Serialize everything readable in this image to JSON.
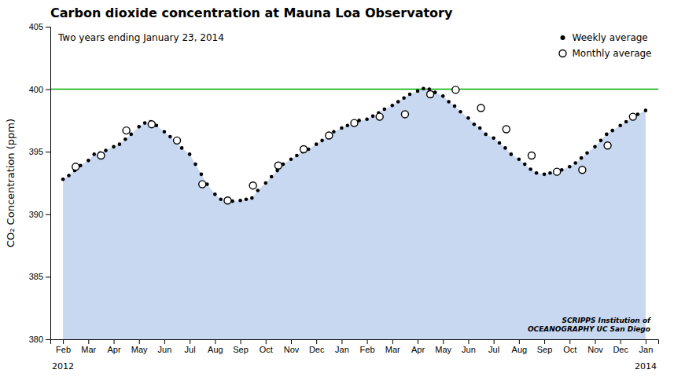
{
  "chart_data": {
    "type": "scatter",
    "title": "Carbon dioxide concentration at Mauna Loa Observatory",
    "subtitle": "Two years ending January 23, 2014",
    "y_label": "CO₂ Concentration (ppm)",
    "xlim": [
      -0.5,
      23.5
    ],
    "xticks": [
      {
        "value": 0,
        "label": "Feb"
      },
      {
        "value": 1,
        "label": "Mar"
      },
      {
        "value": 2,
        "label": "Apr"
      },
      {
        "value": 3,
        "label": "May"
      },
      {
        "value": 4,
        "label": "Jun"
      },
      {
        "value": 5,
        "label": "Jul"
      },
      {
        "value": 6,
        "label": "Aug"
      },
      {
        "value": 7,
        "label": "Sep"
      },
      {
        "value": 8,
        "label": "Oct"
      },
      {
        "value": 9,
        "label": "Nov"
      },
      {
        "value": 10,
        "label": "Dec"
      },
      {
        "value": 11,
        "label": "Jan"
      },
      {
        "value": 12,
        "label": "Feb"
      },
      {
        "value": 13,
        "label": "Mar"
      },
      {
        "value": 14,
        "label": "Apr"
      },
      {
        "value": 15,
        "label": "May"
      },
      {
        "value": 16,
        "label": "Jun"
      },
      {
        "value": 17,
        "label": "Jul"
      },
      {
        "value": 18,
        "label": "Aug"
      },
      {
        "value": 19,
        "label": "Sep"
      },
      {
        "value": 20,
        "label": "Oct"
      },
      {
        "value": 21,
        "label": "Nov"
      },
      {
        "value": 22,
        "label": "Dec"
      },
      {
        "value": 23,
        "label": "Jan"
      }
    ],
    "ylim": [
      380,
      405
    ],
    "yticks": [
      380,
      385,
      390,
      395,
      400,
      405
    ],
    "grid": false,
    "legend": "upper right",
    "annotations": [
      {
        "text": "2012",
        "x": 0
      },
      {
        "text": "2014",
        "x": 23
      },
      {
        "text": "SCRIPPS Institution of\nOCEANOGRAPHY UC San Diego"
      }
    ],
    "series": [
      {
        "type": "area",
        "color": "#c8d8f0",
        "x": [
          0.0,
          0.23,
          0.46,
          0.69,
          1.0,
          1.23,
          1.46,
          1.69,
          2.0,
          2.23,
          2.46,
          2.69,
          3.0,
          3.23,
          3.46,
          3.69,
          4.0,
          4.23,
          4.46,
          4.69,
          5.0,
          5.23,
          5.46,
          5.69,
          6.0,
          6.23,
          6.46,
          6.69,
          7.0,
          7.23,
          7.46,
          7.69,
          8.0,
          8.23,
          8.46,
          8.69,
          9.0,
          9.23,
          9.46,
          9.69,
          10.0,
          10.23,
          10.46,
          10.69,
          11.0,
          11.23,
          11.46,
          11.69,
          12.0,
          12.23,
          12.46,
          12.69,
          13.0,
          13.23,
          13.46,
          13.69,
          14.0,
          14.23,
          14.46,
          14.69,
          15.0,
          15.23,
          15.46,
          15.69,
          16.0,
          16.23,
          16.46,
          16.69,
          17.0,
          17.23,
          17.46,
          17.69,
          18.0,
          18.23,
          18.46,
          18.69,
          19.0,
          19.23,
          19.46,
          19.69,
          20.0,
          20.23,
          20.46,
          20.69,
          21.0,
          21.23,
          21.46,
          21.69,
          22.0,
          22.23,
          22.46,
          22.69,
          23.0
        ],
        "values": [
          392.8,
          393.1,
          393.5,
          393.9,
          394.3,
          394.8,
          394.9,
          395.1,
          395.4,
          395.6,
          396.0,
          396.4,
          397.0,
          397.3,
          397.4,
          397.1,
          396.6,
          396.2,
          395.8,
          395.3,
          394.8,
          394.0,
          393.2,
          392.4,
          391.6,
          391.2,
          391.0,
          391.05,
          391.1,
          391.2,
          391.3,
          391.9,
          392.5,
          393.0,
          393.5,
          394.0,
          394.4,
          394.7,
          395.0,
          395.2,
          395.6,
          395.9,
          396.2,
          396.6,
          396.9,
          397.1,
          397.2,
          397.5,
          397.6,
          397.85,
          398.1,
          398.4,
          398.7,
          399.0,
          399.3,
          399.6,
          399.85,
          400.05,
          400.0,
          399.75,
          399.45,
          399.0,
          398.65,
          398.2,
          397.7,
          397.2,
          396.9,
          396.4,
          396.1,
          395.7,
          395.3,
          394.8,
          394.4,
          394.0,
          393.6,
          393.3,
          393.2,
          393.3,
          393.4,
          393.55,
          393.8,
          394.1,
          394.5,
          394.9,
          395.4,
          395.9,
          396.4,
          396.7,
          397.1,
          397.4,
          397.7,
          398.0,
          398.3
        ]
      },
      {
        "type": "hline",
        "color": "#00aa00",
        "values": [
          400
        ]
      },
      {
        "name": "Weekly average",
        "type": "scatter",
        "marker": "circle",
        "color": "#000000",
        "x": [
          0.0,
          0.23,
          0.46,
          0.69,
          1.0,
          1.23,
          1.46,
          1.69,
          2.0,
          2.23,
          2.46,
          2.69,
          3.0,
          3.23,
          3.46,
          3.69,
          4.0,
          4.23,
          4.46,
          4.69,
          5.0,
          5.23,
          5.46,
          5.69,
          6.0,
          6.23,
          6.46,
          6.69,
          7.0,
          7.23,
          7.46,
          7.69,
          8.0,
          8.23,
          8.46,
          8.69,
          9.0,
          9.23,
          9.46,
          9.69,
          10.0,
          10.23,
          10.46,
          10.69,
          11.0,
          11.23,
          11.46,
          11.69,
          12.0,
          12.23,
          12.46,
          12.69,
          13.0,
          13.23,
          13.46,
          13.69,
          14.0,
          14.23,
          14.46,
          14.69,
          15.0,
          15.23,
          15.46,
          15.69,
          16.0,
          16.23,
          16.46,
          16.69,
          17.0,
          17.23,
          17.46,
          17.69,
          18.0,
          18.23,
          18.46,
          18.69,
          19.0,
          19.23,
          19.46,
          19.69,
          20.0,
          20.23,
          20.46,
          20.69,
          21.0,
          21.23,
          21.46,
          21.69,
          22.0,
          22.23,
          22.46,
          22.69,
          23.0
        ],
        "values": [
          392.8,
          393.1,
          393.5,
          393.9,
          394.3,
          394.8,
          394.9,
          395.1,
          395.4,
          395.6,
          396.0,
          396.4,
          397.0,
          397.3,
          397.4,
          397.1,
          396.6,
          396.2,
          395.8,
          395.3,
          394.8,
          394.0,
          393.2,
          392.4,
          391.6,
          391.2,
          391.0,
          391.05,
          391.1,
          391.2,
          391.3,
          391.9,
          392.5,
          393.0,
          393.5,
          394.0,
          394.4,
          394.7,
          395.0,
          395.2,
          395.6,
          395.9,
          396.2,
          396.6,
          396.9,
          397.1,
          397.2,
          397.5,
          397.6,
          397.85,
          398.1,
          398.4,
          398.7,
          399.0,
          399.3,
          399.6,
          399.85,
          400.05,
          400.0,
          399.75,
          399.45,
          399.0,
          398.65,
          398.2,
          397.7,
          397.2,
          396.9,
          396.4,
          396.1,
          395.7,
          395.3,
          394.8,
          394.4,
          394.0,
          393.6,
          393.3,
          393.2,
          393.3,
          393.4,
          393.55,
          393.8,
          394.1,
          394.5,
          394.9,
          395.4,
          395.9,
          396.4,
          396.7,
          397.1,
          397.4,
          397.7,
          398.0,
          398.3
        ]
      },
      {
        "name": "Monthly average",
        "type": "scatter",
        "marker": "open-circle",
        "color": "#000000",
        "x": [
          0.5,
          1.5,
          2.5,
          3.5,
          4.5,
          5.5,
          6.5,
          7.5,
          8.5,
          9.5,
          10.5,
          11.5,
          12.5,
          13.5,
          14.5,
          15.5,
          16.5,
          17.5,
          18.5,
          19.5,
          20.5,
          21.5,
          22.5
        ],
        "values": [
          393.8,
          394.7,
          396.7,
          397.2,
          395.9,
          392.4,
          391.1,
          392.3,
          393.9,
          395.2,
          396.3,
          397.3,
          397.8,
          398.0,
          399.6,
          399.95,
          398.5,
          396.8,
          394.7,
          393.4,
          393.55,
          395.5,
          397.8
        ]
      }
    ]
  }
}
